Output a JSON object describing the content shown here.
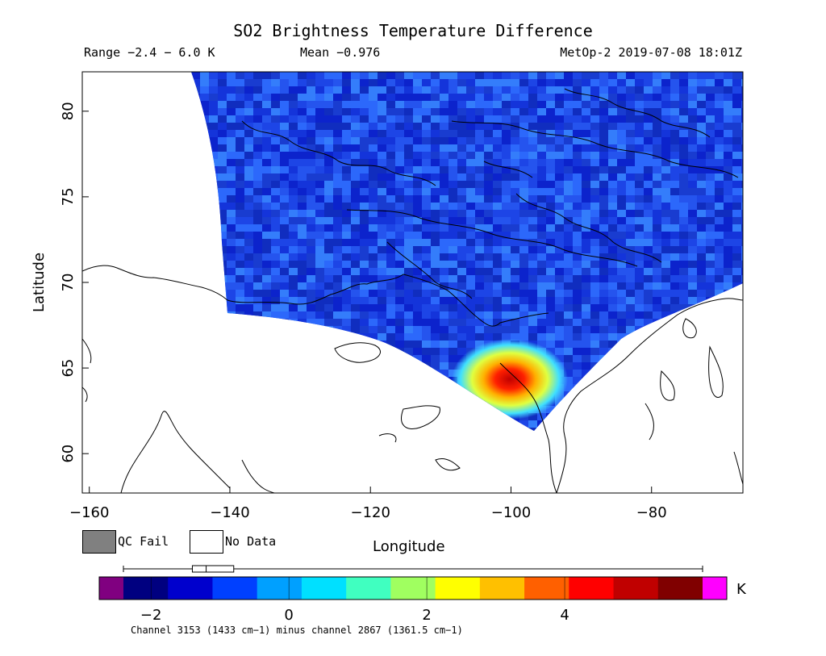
{
  "header": {
    "title": "SO2 Brightness Temperature Difference",
    "range": "Range −2.4 − 6.0 K",
    "mean": "Mean −0.976",
    "satellite_time": "MetOp-2 2019-07-08 18:01Z"
  },
  "axes": {
    "x_label": "Longitude",
    "y_label": "Latitude",
    "x_ticks": [
      {
        "value": -160,
        "label": "−160"
      },
      {
        "value": -140,
        "label": "−140"
      },
      {
        "value": -120,
        "label": "−120"
      },
      {
        "value": -100,
        "label": "−100"
      },
      {
        "value": -80,
        "label": "−80"
      }
    ],
    "y_ticks": [
      {
        "value": 60,
        "label": "60"
      },
      {
        "value": 65,
        "label": "65"
      },
      {
        "value": 70,
        "label": "70"
      },
      {
        "value": 75,
        "label": "75"
      },
      {
        "value": 80,
        "label": "80"
      }
    ],
    "x_range": [
      -161,
      -67
    ],
    "y_range": [
      57.7,
      82.3
    ]
  },
  "legend": {
    "qc_fail": "QC Fail",
    "no_data": "No Data"
  },
  "colorbar": {
    "unit": "K",
    "caption": "Channel 3153 (1433 cm−1) minus channel 2867 (1361.5 cm−1)",
    "range": [
      -2.4,
      6.0
    ],
    "ticks": [
      {
        "value": -2,
        "label": "−2"
      },
      {
        "value": 0,
        "label": "0"
      },
      {
        "value": 2,
        "label": "2"
      },
      {
        "value": 4,
        "label": "4"
      }
    ],
    "box_whisker": {
      "min": -2.4,
      "q1": -1.4,
      "median": -1.2,
      "q3": -0.8,
      "max": 6.0
    },
    "colors": [
      "#000080",
      "#0000cd",
      "#0040ff",
      "#00a0ff",
      "#00e0ff",
      "#40ffc0",
      "#a0ff60",
      "#ffff00",
      "#ffc000",
      "#ff6000",
      "#ff0000",
      "#c00000",
      "#800000"
    ],
    "under_color": "#800080",
    "over_color": "#ff00ff"
  },
  "map": {
    "background_value": -1.0,
    "plume": {
      "lon": -100.5,
      "lat": 64.3,
      "peak_value": 5.6
    }
  }
}
